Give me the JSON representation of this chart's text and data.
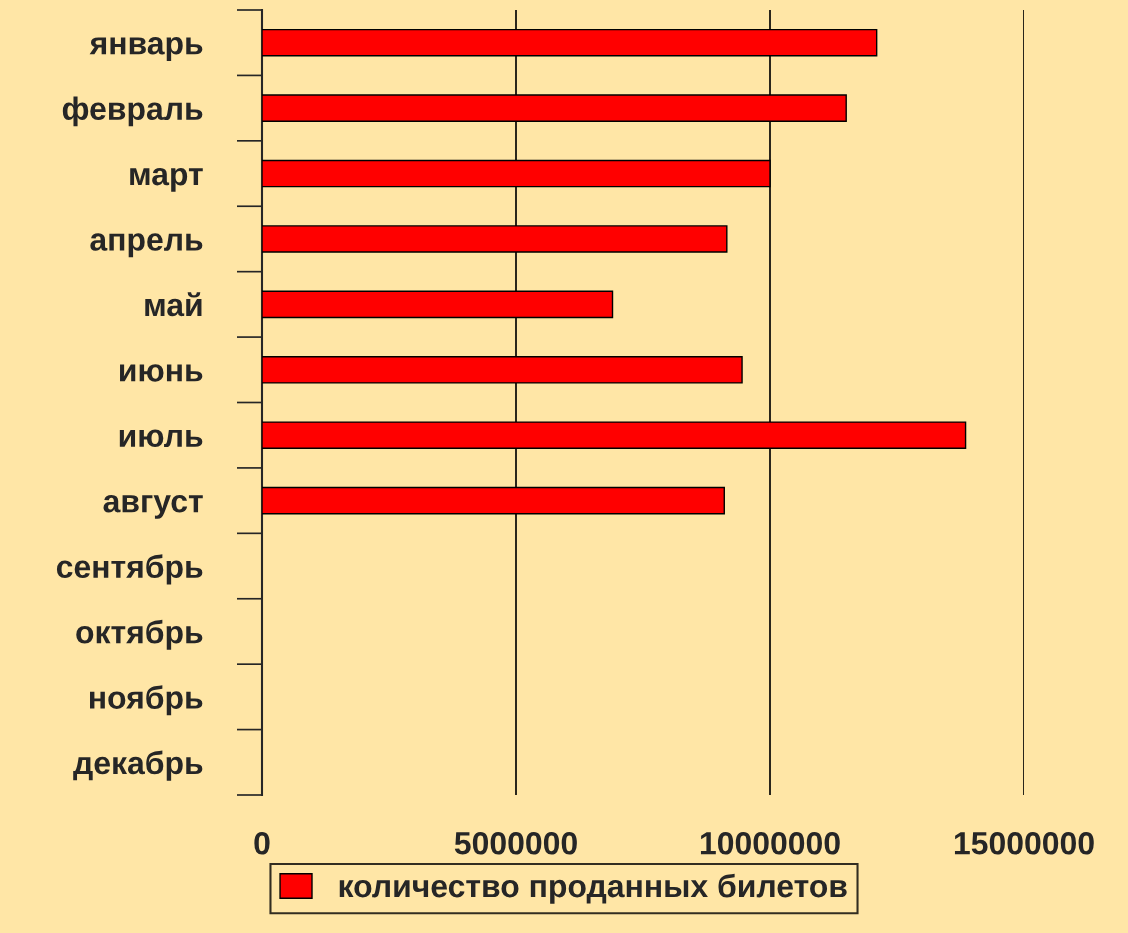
{
  "chart_data": {
    "type": "bar",
    "orientation": "horizontal",
    "categories": [
      "январь",
      "февраль",
      "март",
      "апрель",
      "май",
      "июнь",
      "июль",
      "август",
      "сентябрь",
      "октябрь",
      "ноябрь",
      "декабрь"
    ],
    "series": [
      {
        "name": "количество проданных билетов",
        "color": "#ff0000",
        "values": [
          12100000,
          11500000,
          10000000,
          9150000,
          6900000,
          9450000,
          13850000,
          9100000,
          null,
          null,
          null,
          null
        ]
      }
    ],
    "xlim": [
      0,
      15000000
    ],
    "xticks": [
      0,
      5000000,
      10000000,
      15000000
    ],
    "grid": "x",
    "legend": "bottom"
  }
}
